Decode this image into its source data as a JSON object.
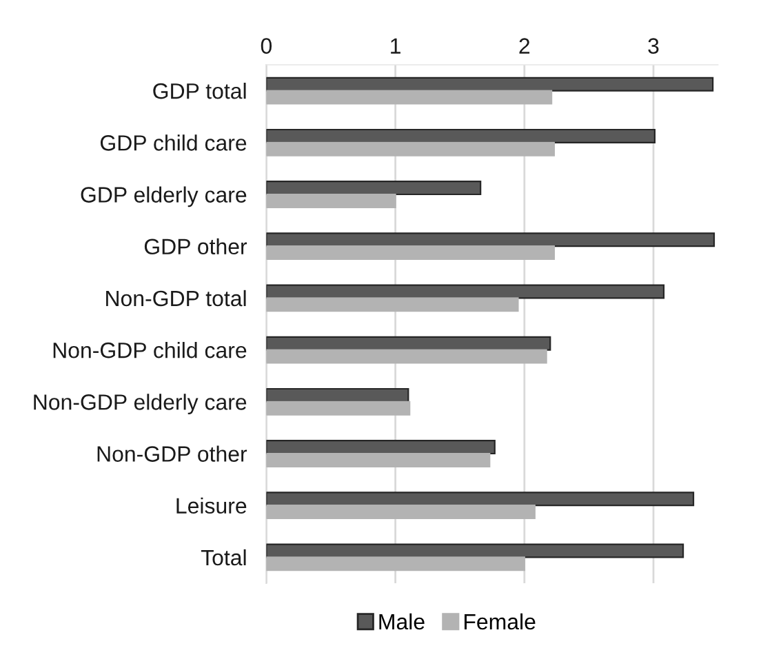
{
  "chart_data": {
    "type": "bar",
    "orientation": "horizontal",
    "categories": [
      "GDP total",
      "GDP child care",
      "GDP elderly care",
      "GDP other",
      "Non-GDP total",
      "Non-GDP child care",
      "Non-GDP elderly care",
      "Non-GDP other",
      "Leisure",
      "Total"
    ],
    "series": [
      {
        "name": "Male",
        "color": "#595959",
        "values": [
          3.46,
          3.01,
          1.66,
          3.47,
          3.08,
          2.2,
          1.1,
          1.77,
          3.31,
          3.23
        ]
      },
      {
        "name": "Female",
        "color": "#b3b3b3",
        "values": [
          2.21,
          2.23,
          1.0,
          2.23,
          1.95,
          2.17,
          1.11,
          1.73,
          2.08,
          2.0
        ]
      }
    ],
    "xlim": [
      0,
      3.5
    ],
    "xticks": [
      0,
      1,
      2,
      3
    ],
    "grid": "x",
    "legend": "bottom"
  }
}
